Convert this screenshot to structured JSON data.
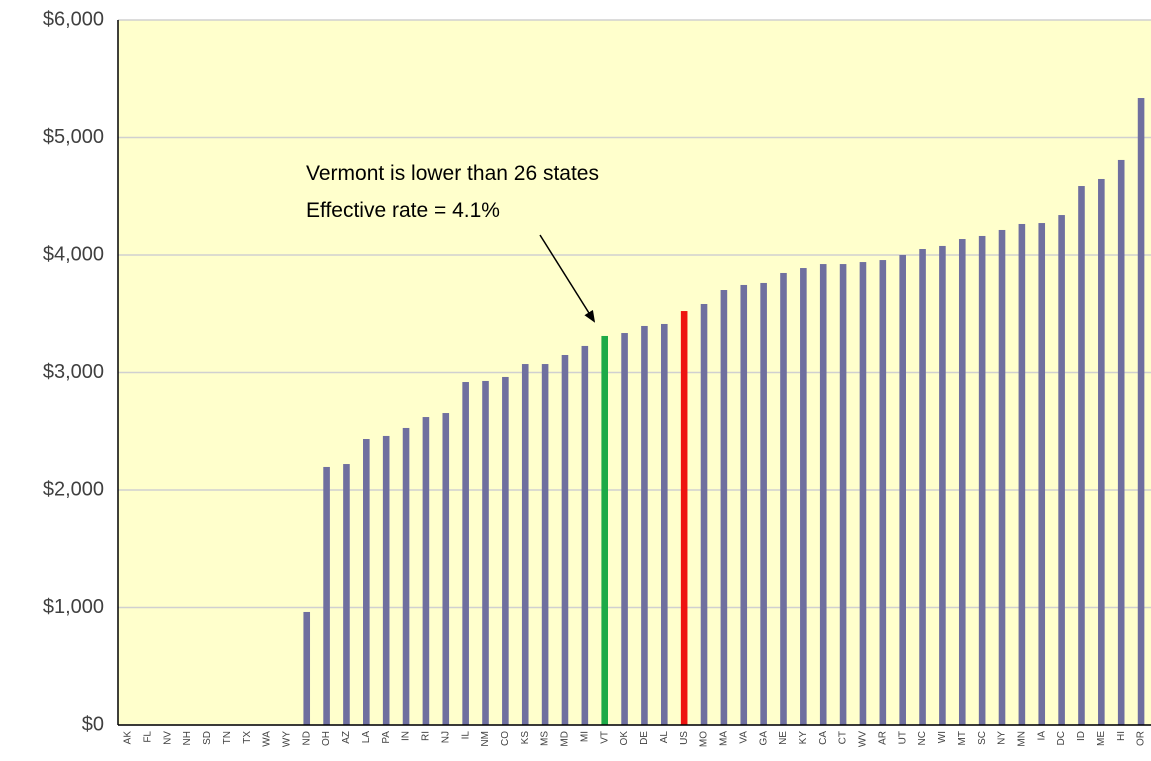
{
  "chart_data": {
    "type": "bar",
    "annotation": [
      "Vermont is lower than 26 states",
      "Effective rate = 4.1%"
    ],
    "categories": [
      "AK",
      "FL",
      "NV",
      "NH",
      "SD",
      "TN",
      "TX",
      "WA",
      "WY",
      "ND",
      "OH",
      "AZ",
      "LA",
      "PA",
      "IN",
      "RI",
      "NJ",
      "IL",
      "NM",
      "CO",
      "KS",
      "MS",
      "MD",
      "MI",
      "VT",
      "OK",
      "DE",
      "AL",
      "US",
      "MO",
      "MA",
      "VA",
      "GA",
      "NE",
      "KY",
      "CA",
      "CT",
      "WV",
      "AR",
      "UT",
      "NC",
      "WI",
      "MT",
      "SC",
      "NY",
      "MN",
      "IA",
      "DC",
      "ID",
      "ME",
      "HI",
      "OR"
    ],
    "values": [
      0,
      0,
      0,
      0,
      0,
      0,
      0,
      0,
      0,
      962,
      2196,
      2221,
      2434,
      2460,
      2528,
      2621,
      2655,
      2919,
      2928,
      2962,
      3072,
      3072,
      3149,
      3226,
      3311,
      3336,
      3396,
      3413,
      3523,
      3583,
      3702,
      3745,
      3762,
      3847,
      3889,
      3923,
      3923,
      3940,
      3957,
      4000,
      4051,
      4077,
      4136,
      4162,
      4213,
      4264,
      4272,
      4340,
      4587,
      4647,
      4809,
      5336
    ],
    "color": "#6f6f9f",
    "highlights": [
      {
        "category": "VT",
        "color": "#1daa47"
      },
      {
        "category": "US",
        "color": "#ee1410"
      }
    ],
    "ylim": [
      0,
      6000
    ],
    "yticks": [
      {
        "value": 0,
        "label": "$0"
      },
      {
        "value": 1000,
        "label": "$1,000"
      },
      {
        "value": 2000,
        "label": "$2,000"
      },
      {
        "value": 3000,
        "label": "$3,000"
      },
      {
        "value": 4000,
        "label": "$4,000"
      },
      {
        "value": 5000,
        "label": "$5,000"
      },
      {
        "value": 6000,
        "label": "$6,000"
      }
    ],
    "grid": true,
    "background": "#ffffcc"
  }
}
